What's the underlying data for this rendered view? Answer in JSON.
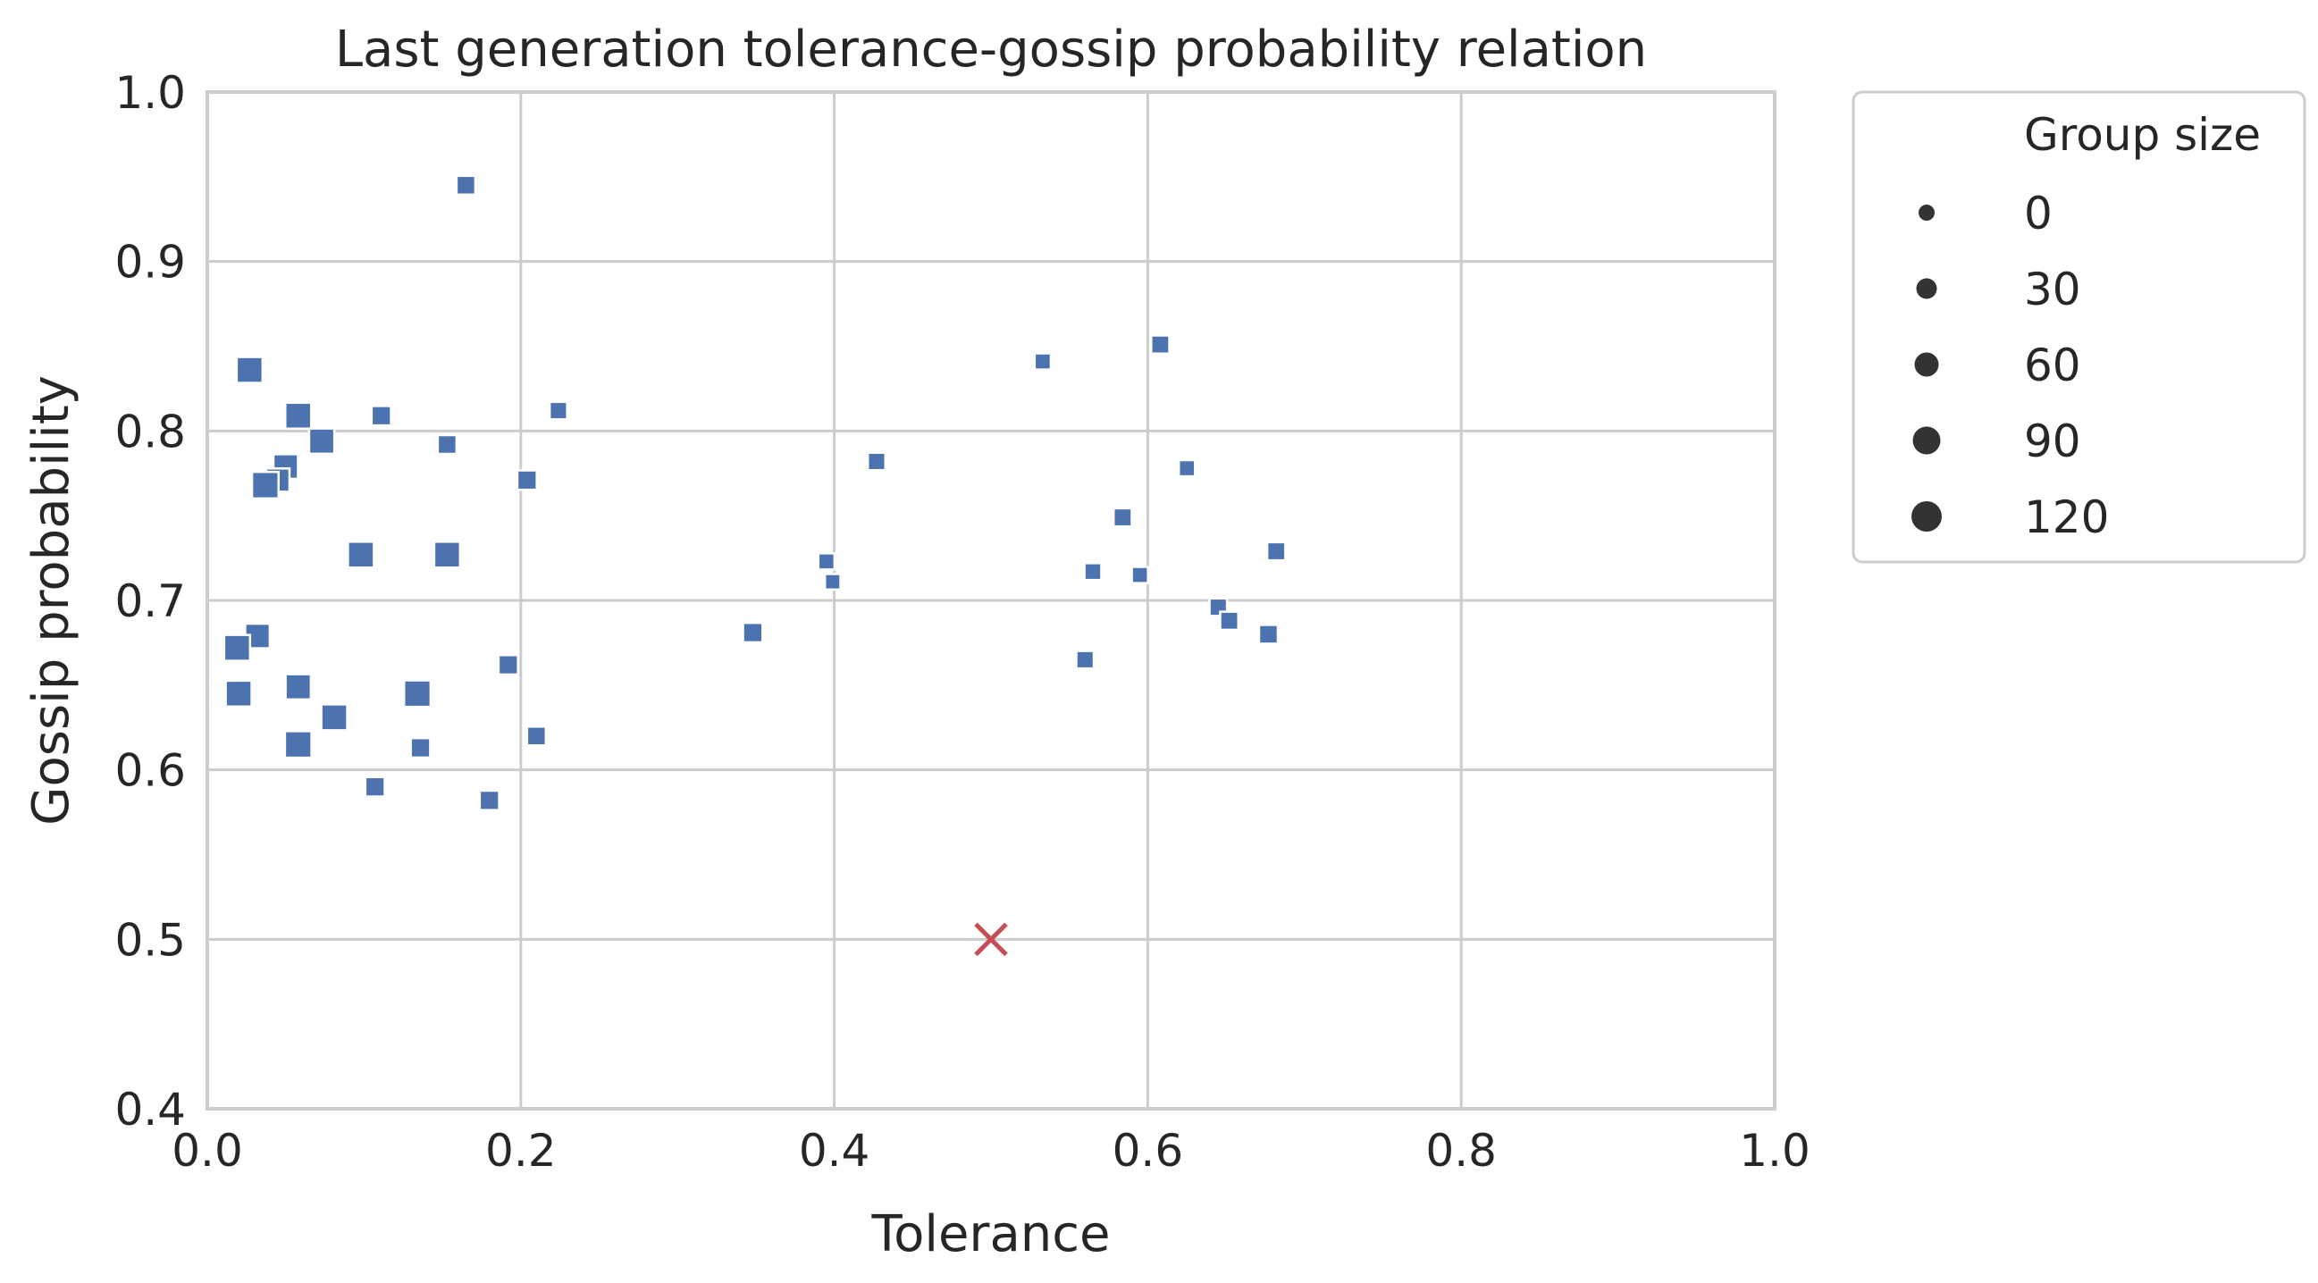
{
  "chart_data": {
    "type": "scatter",
    "title": "Last generation tolerance-gossip probability relation",
    "xlabel": "Tolerance",
    "ylabel": "Gossip probability",
    "xlim": [
      0.0,
      1.0
    ],
    "ylim": [
      0.4,
      1.0
    ],
    "xticks": [
      "0.0",
      "0.2",
      "0.4",
      "0.6",
      "0.8",
      "1.0"
    ],
    "yticks": [
      "0.4",
      "0.5",
      "0.6",
      "0.7",
      "0.8",
      "0.9",
      "1.0"
    ],
    "grid": true,
    "marker_color": "#4c72b0",
    "reference_marker_color": "#c44e52",
    "series": [
      {
        "marker": "square",
        "points": [
          {
            "x": 0.165,
            "y": 0.945,
            "size": 55
          },
          {
            "x": 0.027,
            "y": 0.836,
            "size": 110
          },
          {
            "x": 0.058,
            "y": 0.809,
            "size": 110
          },
          {
            "x": 0.111,
            "y": 0.809,
            "size": 60
          },
          {
            "x": 0.224,
            "y": 0.812,
            "size": 45
          },
          {
            "x": 0.073,
            "y": 0.794,
            "size": 105
          },
          {
            "x": 0.153,
            "y": 0.792,
            "size": 55
          },
          {
            "x": 0.05,
            "y": 0.779,
            "size": 100
          },
          {
            "x": 0.045,
            "y": 0.771,
            "size": 90
          },
          {
            "x": 0.037,
            "y": 0.768,
            "size": 115
          },
          {
            "x": 0.204,
            "y": 0.771,
            "size": 60
          },
          {
            "x": 0.098,
            "y": 0.727,
            "size": 110
          },
          {
            "x": 0.153,
            "y": 0.727,
            "size": 110
          },
          {
            "x": 0.032,
            "y": 0.679,
            "size": 100
          },
          {
            "x": 0.019,
            "y": 0.672,
            "size": 110
          },
          {
            "x": 0.192,
            "y": 0.662,
            "size": 60
          },
          {
            "x": 0.02,
            "y": 0.645,
            "size": 110
          },
          {
            "x": 0.058,
            "y": 0.649,
            "size": 105
          },
          {
            "x": 0.134,
            "y": 0.645,
            "size": 115
          },
          {
            "x": 0.081,
            "y": 0.631,
            "size": 110
          },
          {
            "x": 0.058,
            "y": 0.615,
            "size": 115
          },
          {
            "x": 0.136,
            "y": 0.613,
            "size": 60
          },
          {
            "x": 0.21,
            "y": 0.62,
            "size": 55
          },
          {
            "x": 0.107,
            "y": 0.59,
            "size": 60
          },
          {
            "x": 0.18,
            "y": 0.582,
            "size": 60
          },
          {
            "x": 0.348,
            "y": 0.681,
            "size": 60
          },
          {
            "x": 0.395,
            "y": 0.723,
            "size": 35
          },
          {
            "x": 0.399,
            "y": 0.711,
            "size": 30
          },
          {
            "x": 0.427,
            "y": 0.782,
            "size": 45
          },
          {
            "x": 0.533,
            "y": 0.841,
            "size": 35
          },
          {
            "x": 0.608,
            "y": 0.851,
            "size": 50
          },
          {
            "x": 0.625,
            "y": 0.778,
            "size": 35
          },
          {
            "x": 0.584,
            "y": 0.749,
            "size": 50
          },
          {
            "x": 0.565,
            "y": 0.717,
            "size": 40
          },
          {
            "x": 0.595,
            "y": 0.715,
            "size": 35
          },
          {
            "x": 0.682,
            "y": 0.729,
            "size": 50
          },
          {
            "x": 0.645,
            "y": 0.696,
            "size": 45
          },
          {
            "x": 0.652,
            "y": 0.688,
            "size": 50
          },
          {
            "x": 0.677,
            "y": 0.68,
            "size": 55
          },
          {
            "x": 0.56,
            "y": 0.665,
            "size": 45
          }
        ]
      },
      {
        "marker": "x",
        "points": [
          {
            "x": 0.5,
            "y": 0.5
          }
        ]
      }
    ],
    "legend": {
      "title": "Group size",
      "placement": "outside-right-top",
      "entries": [
        {
          "label": "0",
          "size": 0
        },
        {
          "label": "30",
          "size": 30
        },
        {
          "label": "60",
          "size": 60
        },
        {
          "label": "90",
          "size": 90
        },
        {
          "label": "120",
          "size": 120
        }
      ]
    }
  }
}
